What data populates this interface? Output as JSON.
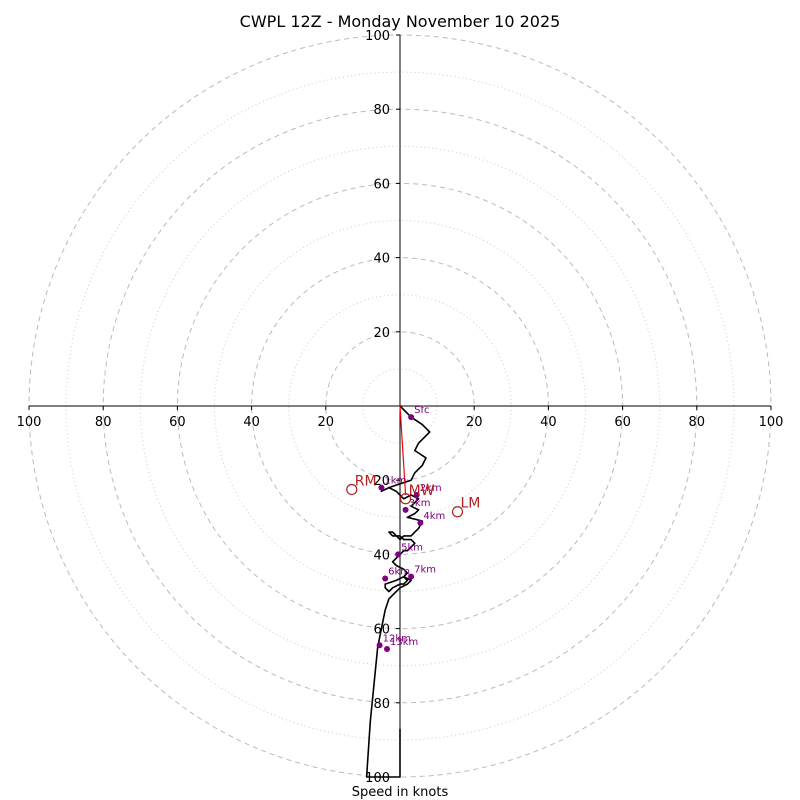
{
  "chart_data": {
    "type": "line",
    "subtype": "hodograph",
    "title": "CWPL 12Z - Monday November 10 2025",
    "xlabel": "Speed in knots",
    "ylabel": "",
    "xlim": [
      -100,
      100
    ],
    "ylim": [
      -100,
      100
    ],
    "rings": [
      20,
      40,
      60,
      80,
      100
    ],
    "minor_rings": [
      10,
      30,
      50,
      70,
      90
    ],
    "x_tick_labels": [
      "100",
      "80",
      "60",
      "40",
      "20",
      "20",
      "40",
      "60",
      "80",
      "100"
    ],
    "x_tick_values": [
      -100,
      -80,
      -60,
      -40,
      -20,
      20,
      40,
      60,
      80,
      100
    ],
    "y_tick_labels": [
      "100",
      "80",
      "60",
      "40",
      "20",
      "20",
      "40",
      "60",
      "80",
      "100"
    ],
    "y_tick_values": [
      100,
      80,
      60,
      40,
      20,
      -20,
      -40,
      -60,
      -80,
      -100
    ],
    "colors": {
      "trace": "#000000",
      "markers": "#800080",
      "motion": "#b22222",
      "grid": "#bbbbbb",
      "mean_wind_line": "#ff0000"
    },
    "series": [
      {
        "name": "hodograph",
        "x": [
          0,
          3,
          6,
          8,
          6,
          5,
          4,
          7,
          6,
          4,
          3,
          0,
          -3,
          -5,
          -3,
          -1,
          1,
          3,
          5,
          4,
          3,
          5,
          4,
          2,
          6,
          5,
          5,
          4,
          3,
          1,
          0,
          -2,
          -3,
          -2,
          0,
          1,
          3,
          4,
          3,
          2,
          1,
          0,
          -2,
          -1,
          1,
          2,
          1,
          -1,
          -4,
          -4,
          -3,
          -2,
          0,
          1,
          2,
          1,
          3,
          2,
          0,
          -2,
          -3,
          -4,
          -5,
          -6,
          -7,
          -8,
          -9,
          0,
          0
        ],
        "y": [
          0,
          -3,
          -5,
          -7,
          -9,
          -10,
          -12,
          -14,
          -16,
          -18,
          -20,
          -21,
          -22,
          -23,
          -22,
          -23,
          -25,
          -24,
          -25,
          -26,
          -27,
          -28,
          -29,
          -30,
          -31,
          -33,
          -33,
          -34,
          -35,
          -35,
          -36,
          -34,
          -34,
          -35,
          -35,
          -36,
          -36,
          -37,
          -38,
          -39,
          -39,
          -40,
          -42,
          -43,
          -44,
          -45,
          -46,
          -47,
          -48,
          -49,
          -50,
          -49,
          -48,
          -48,
          -47,
          -46,
          -47,
          -48,
          -49,
          -51,
          -52,
          -55,
          -60,
          -65,
          -75,
          -85,
          -100,
          -100,
          -87
        ]
      },
      {
        "name": "mean-wind-line",
        "x": [
          0,
          1.5
        ],
        "y": [
          0,
          -24
        ]
      }
    ],
    "height_markers": [
      {
        "label": "Sfc",
        "x": 3,
        "y": -3
      },
      {
        "label": "1km",
        "x": -5,
        "y": -22
      },
      {
        "label": "2km",
        "x": 4.5,
        "y": -24
      },
      {
        "label": "3km",
        "x": 1.5,
        "y": -28
      },
      {
        "label": "4km",
        "x": 5.5,
        "y": -31.5
      },
      {
        "label": "5km",
        "x": -0.5,
        "y": -40
      },
      {
        "label": "6km",
        "x": -4,
        "y": -46.5
      },
      {
        "label": "7km",
        "x": 3,
        "y": -46
      },
      {
        "label": "12km",
        "x": -5.5,
        "y": -64.5
      },
      {
        "label": "13km",
        "x": -3.5,
        "y": -65.5
      }
    ],
    "storm_motions": [
      {
        "label": "RM",
        "x": -13,
        "y": -22.5
      },
      {
        "label": "LM",
        "x": 15.5,
        "y": -28.5
      },
      {
        "label": "MW",
        "x": 1.5,
        "y": -25
      }
    ]
  }
}
